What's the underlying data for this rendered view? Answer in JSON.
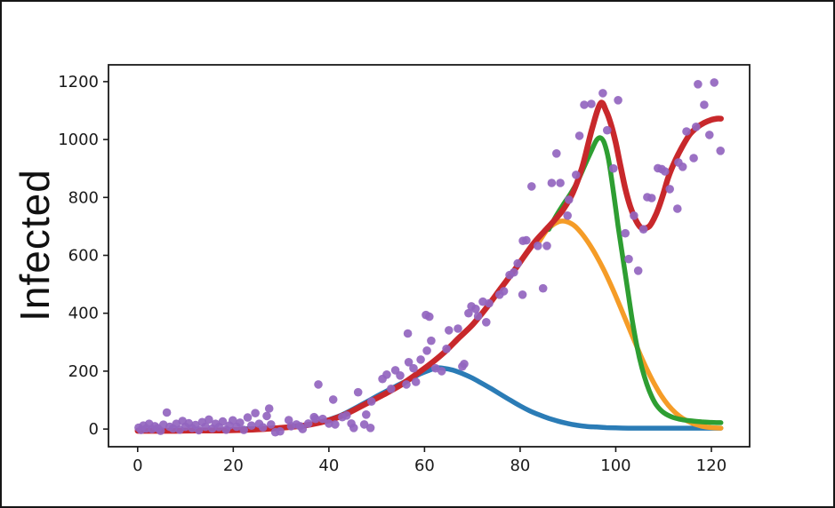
{
  "figure": {
    "y_axis_label": "Infected",
    "background": "#ffffff",
    "frame_border_color": "#161616",
    "axis_color": "#1a1a1a"
  },
  "chart_data": {
    "type": "line",
    "title": "",
    "xlabel": "",
    "ylabel": "Infected",
    "xlim": [
      -6.1,
      128
    ],
    "ylim": [
      -61,
      1258
    ],
    "xticks": [
      0,
      20,
      40,
      60,
      80,
      100,
      120
    ],
    "yticks": [
      0,
      200,
      400,
      600,
      800,
      1000,
      1200
    ],
    "grid": false,
    "legend": false,
    "series": [
      {
        "name": "blue-curve",
        "color": "#2b7cb6",
        "stroke_width": 5.5,
        "points": [
          [
            22,
            1
          ],
          [
            26,
            2
          ],
          [
            30,
            5
          ],
          [
            34,
            11
          ],
          [
            38,
            23
          ],
          [
            42,
            44
          ],
          [
            45,
            68
          ],
          [
            48,
            95
          ],
          [
            51,
            122
          ],
          [
            54,
            148
          ],
          [
            57,
            172
          ],
          [
            59,
            190
          ],
          [
            61,
            203
          ],
          [
            62.5,
            211
          ],
          [
            64,
            210
          ],
          [
            66,
            203
          ],
          [
            68,
            191
          ],
          [
            70,
            176
          ],
          [
            72,
            158
          ],
          [
            74,
            139
          ],
          [
            76,
            119
          ],
          [
            78,
            99
          ],
          [
            80,
            80
          ],
          [
            82,
            63
          ],
          [
            84,
            49
          ],
          [
            86,
            37
          ],
          [
            88,
            27
          ],
          [
            90,
            19
          ],
          [
            92,
            13
          ],
          [
            94,
            9
          ],
          [
            96,
            7
          ],
          [
            98,
            5
          ],
          [
            100,
            4
          ],
          [
            103,
            3
          ],
          [
            106,
            3
          ],
          [
            110,
            3
          ],
          [
            114,
            3
          ],
          [
            118,
            3
          ],
          [
            122,
            3
          ]
        ]
      },
      {
        "name": "orange-curve",
        "color": "#f59c27",
        "stroke_width": 5.5,
        "points": [
          [
            84,
            648
          ],
          [
            85.5,
            685
          ],
          [
            87,
            707
          ],
          [
            88.5,
            718
          ],
          [
            90,
            715
          ],
          [
            91.5,
            700
          ],
          [
            93,
            673
          ],
          [
            94.5,
            638
          ],
          [
            96,
            597
          ],
          [
            97.5,
            550
          ],
          [
            99,
            497
          ],
          [
            100.5,
            440
          ],
          [
            102,
            380
          ],
          [
            103.5,
            320
          ],
          [
            105,
            262
          ],
          [
            106.5,
            207
          ],
          [
            108,
            158
          ],
          [
            109.5,
            116
          ],
          [
            111,
            82
          ],
          [
            112.5,
            56
          ],
          [
            114,
            37
          ],
          [
            116,
            20
          ],
          [
            118,
            10
          ],
          [
            120,
            5
          ],
          [
            122,
            3
          ]
        ]
      },
      {
        "name": "green-curve",
        "color": "#2e9e32",
        "stroke_width": 5.5,
        "points": [
          [
            86,
            690
          ],
          [
            87.5,
            735
          ],
          [
            89,
            775
          ],
          [
            90.5,
            812
          ],
          [
            92,
            855
          ],
          [
            93.5,
            910
          ],
          [
            95,
            965
          ],
          [
            96,
            998
          ],
          [
            96.8,
            1006
          ],
          [
            97.6,
            988
          ],
          [
            98.5,
            930
          ],
          [
            99.5,
            820
          ],
          [
            100.5,
            700
          ],
          [
            101.5,
            590
          ],
          [
            102.5,
            480
          ],
          [
            103.5,
            370
          ],
          [
            104.5,
            280
          ],
          [
            105.5,
            210
          ],
          [
            106.5,
            155
          ],
          [
            107.5,
            113
          ],
          [
            108.5,
            83
          ],
          [
            110,
            57
          ],
          [
            112,
            40
          ],
          [
            114,
            32
          ],
          [
            116,
            28
          ],
          [
            118,
            25
          ],
          [
            120,
            23
          ],
          [
            122,
            22
          ]
        ]
      },
      {
        "name": "red-curve",
        "color": "#c8282b",
        "stroke_width": 6.5,
        "points": [
          [
            0,
            -6
          ],
          [
            4,
            -6
          ],
          [
            8,
            -6
          ],
          [
            12,
            -5
          ],
          [
            16,
            -5
          ],
          [
            20,
            -4
          ],
          [
            24,
            -2
          ],
          [
            28,
            2
          ],
          [
            32,
            7
          ],
          [
            36,
            15
          ],
          [
            40,
            30
          ],
          [
            43,
            48
          ],
          [
            46,
            72
          ],
          [
            49,
            98
          ],
          [
            52,
            124
          ],
          [
            55,
            152
          ],
          [
            58,
            186
          ],
          [
            61,
            222
          ],
          [
            64,
            263
          ],
          [
            67,
            312
          ],
          [
            70,
            360
          ],
          [
            73,
            420
          ],
          [
            76,
            487
          ],
          [
            79,
            553
          ],
          [
            81,
            600
          ],
          [
            83,
            645
          ],
          [
            85,
            682
          ],
          [
            87,
            718
          ],
          [
            89,
            758
          ],
          [
            91,
            815
          ],
          [
            93,
            905
          ],
          [
            95,
            1035
          ],
          [
            96.8,
            1125
          ],
          [
            98,
            1098
          ],
          [
            99,
            1052
          ],
          [
            100,
            988
          ],
          [
            101,
            908
          ],
          [
            102,
            830
          ],
          [
            103,
            770
          ],
          [
            104,
            728
          ],
          [
            105,
            700
          ],
          [
            105.8,
            693
          ],
          [
            107,
            700
          ],
          [
            108,
            727
          ],
          [
            109,
            765
          ],
          [
            110,
            815
          ],
          [
            111,
            870
          ],
          [
            112.5,
            930
          ],
          [
            114,
            978
          ],
          [
            115.5,
            1018
          ],
          [
            117,
            1042
          ],
          [
            118.5,
            1058
          ],
          [
            120,
            1068
          ],
          [
            121.2,
            1072
          ],
          [
            122,
            1072
          ]
        ]
      }
    ],
    "scatter": {
      "name": "observed-data-points",
      "color": "#9365bf",
      "radius": 4.8,
      "points": [
        [
          0.2,
          5
        ],
        [
          0.7,
          -3
        ],
        [
          1.2,
          12
        ],
        [
          1.8,
          2
        ],
        [
          2.4,
          18
        ],
        [
          3,
          0
        ],
        [
          3.6,
          10
        ],
        [
          4.2,
          3
        ],
        [
          4.8,
          -6
        ],
        [
          5.4,
          15
        ],
        [
          6.1,
          57
        ],
        [
          6.7,
          8
        ],
        [
          7.4,
          2
        ],
        [
          8.1,
          18
        ],
        [
          8.8,
          -2
        ],
        [
          9.4,
          28
        ],
        [
          10,
          8
        ],
        [
          10.7,
          20
        ],
        [
          11.4,
          3
        ],
        [
          12.1,
          14
        ],
        [
          12.8,
          -4
        ],
        [
          13.5,
          24
        ],
        [
          14.2,
          8
        ],
        [
          14.9,
          33
        ],
        [
          15.6,
          2
        ],
        [
          16.3,
          18
        ],
        [
          17,
          7
        ],
        [
          17.8,
          26
        ],
        [
          18.5,
          -2
        ],
        [
          19.2,
          12
        ],
        [
          19.9,
          30
        ],
        [
          20.7,
          8
        ],
        [
          21.4,
          22
        ],
        [
          22.2,
          -3
        ],
        [
          23,
          40
        ],
        [
          23.8,
          12
        ],
        [
          24.6,
          55
        ],
        [
          25.4,
          18
        ],
        [
          26.2,
          6
        ],
        [
          27,
          45
        ],
        [
          27.5,
          71
        ],
        [
          27.9,
          16
        ],
        [
          28.8,
          -11
        ],
        [
          29.8,
          -8
        ],
        [
          31.6,
          31
        ],
        [
          32.1,
          10
        ],
        [
          33.2,
          16
        ],
        [
          34,
          10
        ],
        [
          34.5,
          0
        ],
        [
          35.7,
          19
        ],
        [
          36.9,
          41
        ],
        [
          37.2,
          35
        ],
        [
          37.8,
          154
        ],
        [
          38.7,
          35
        ],
        [
          40,
          19
        ],
        [
          40.9,
          102
        ],
        [
          41.3,
          16
        ],
        [
          42.8,
          41
        ],
        [
          43.7,
          47
        ],
        [
          44.7,
          19
        ],
        [
          45.2,
          4
        ],
        [
          46.1,
          127
        ],
        [
          47.4,
          16
        ],
        [
          47.8,
          50
        ],
        [
          48.7,
          4
        ],
        [
          48.9,
          95
        ],
        [
          51.2,
          173
        ],
        [
          52.1,
          188
        ],
        [
          53,
          139
        ],
        [
          53.9,
          203
        ],
        [
          54.9,
          185
        ],
        [
          56.2,
          154
        ],
        [
          56.7,
          231
        ],
        [
          56.5,
          330
        ],
        [
          57.7,
          210
        ],
        [
          58.2,
          163
        ],
        [
          59.2,
          240
        ],
        [
          60.3,
          394
        ],
        [
          61,
          388
        ],
        [
          60.5,
          271
        ],
        [
          61.4,
          305
        ],
        [
          62.3,
          210
        ],
        [
          63.6,
          200
        ],
        [
          64.6,
          277
        ],
        [
          65.1,
          341
        ],
        [
          67,
          347
        ],
        [
          67.9,
          216
        ],
        [
          68.3,
          225
        ],
        [
          69.2,
          400
        ],
        [
          69.8,
          424
        ],
        [
          70.7,
          415
        ],
        [
          71.2,
          390
        ],
        [
          72.2,
          440
        ],
        [
          72.9,
          369
        ],
        [
          73.5,
          434
        ],
        [
          75.7,
          464
        ],
        [
          76.6,
          476
        ],
        [
          77.8,
          532
        ],
        [
          78.7,
          541
        ],
        [
          79.5,
          572
        ],
        [
          80.5,
          464
        ],
        [
          80.6,
          650
        ],
        [
          81.3,
          652
        ],
        [
          82.4,
          838
        ],
        [
          83.7,
          633
        ],
        [
          84.8,
          486
        ],
        [
          85.6,
          633
        ],
        [
          86.6,
          850
        ],
        [
          87.6,
          952
        ],
        [
          88.4,
          850
        ],
        [
          89.9,
          737
        ],
        [
          90.2,
          792
        ],
        [
          91.7,
          878
        ],
        [
          92.4,
          1013
        ],
        [
          93.4,
          1120
        ],
        [
          94.9,
          1123
        ],
        [
          97.3,
          1160
        ],
        [
          98.2,
          1032
        ],
        [
          99.5,
          900
        ],
        [
          100.5,
          1136
        ],
        [
          102,
          676
        ],
        [
          102.7,
          587
        ],
        [
          103.8,
          737
        ],
        [
          104.7,
          547
        ],
        [
          105.8,
          690
        ],
        [
          106.6,
          801
        ],
        [
          107.5,
          798
        ],
        [
          108.8,
          901
        ],
        [
          109.6,
          898
        ],
        [
          110.3,
          890
        ],
        [
          111.3,
          829
        ],
        [
          112.9,
          761
        ],
        [
          113.1,
          921
        ],
        [
          114,
          906
        ],
        [
          114.8,
          1028
        ],
        [
          116.3,
          936
        ],
        [
          116.8,
          1044
        ],
        [
          117.2,
          1191
        ],
        [
          118.5,
          1120
        ],
        [
          119.6,
          1016
        ],
        [
          120.6,
          1197
        ],
        [
          121.9,
          961
        ]
      ]
    }
  }
}
